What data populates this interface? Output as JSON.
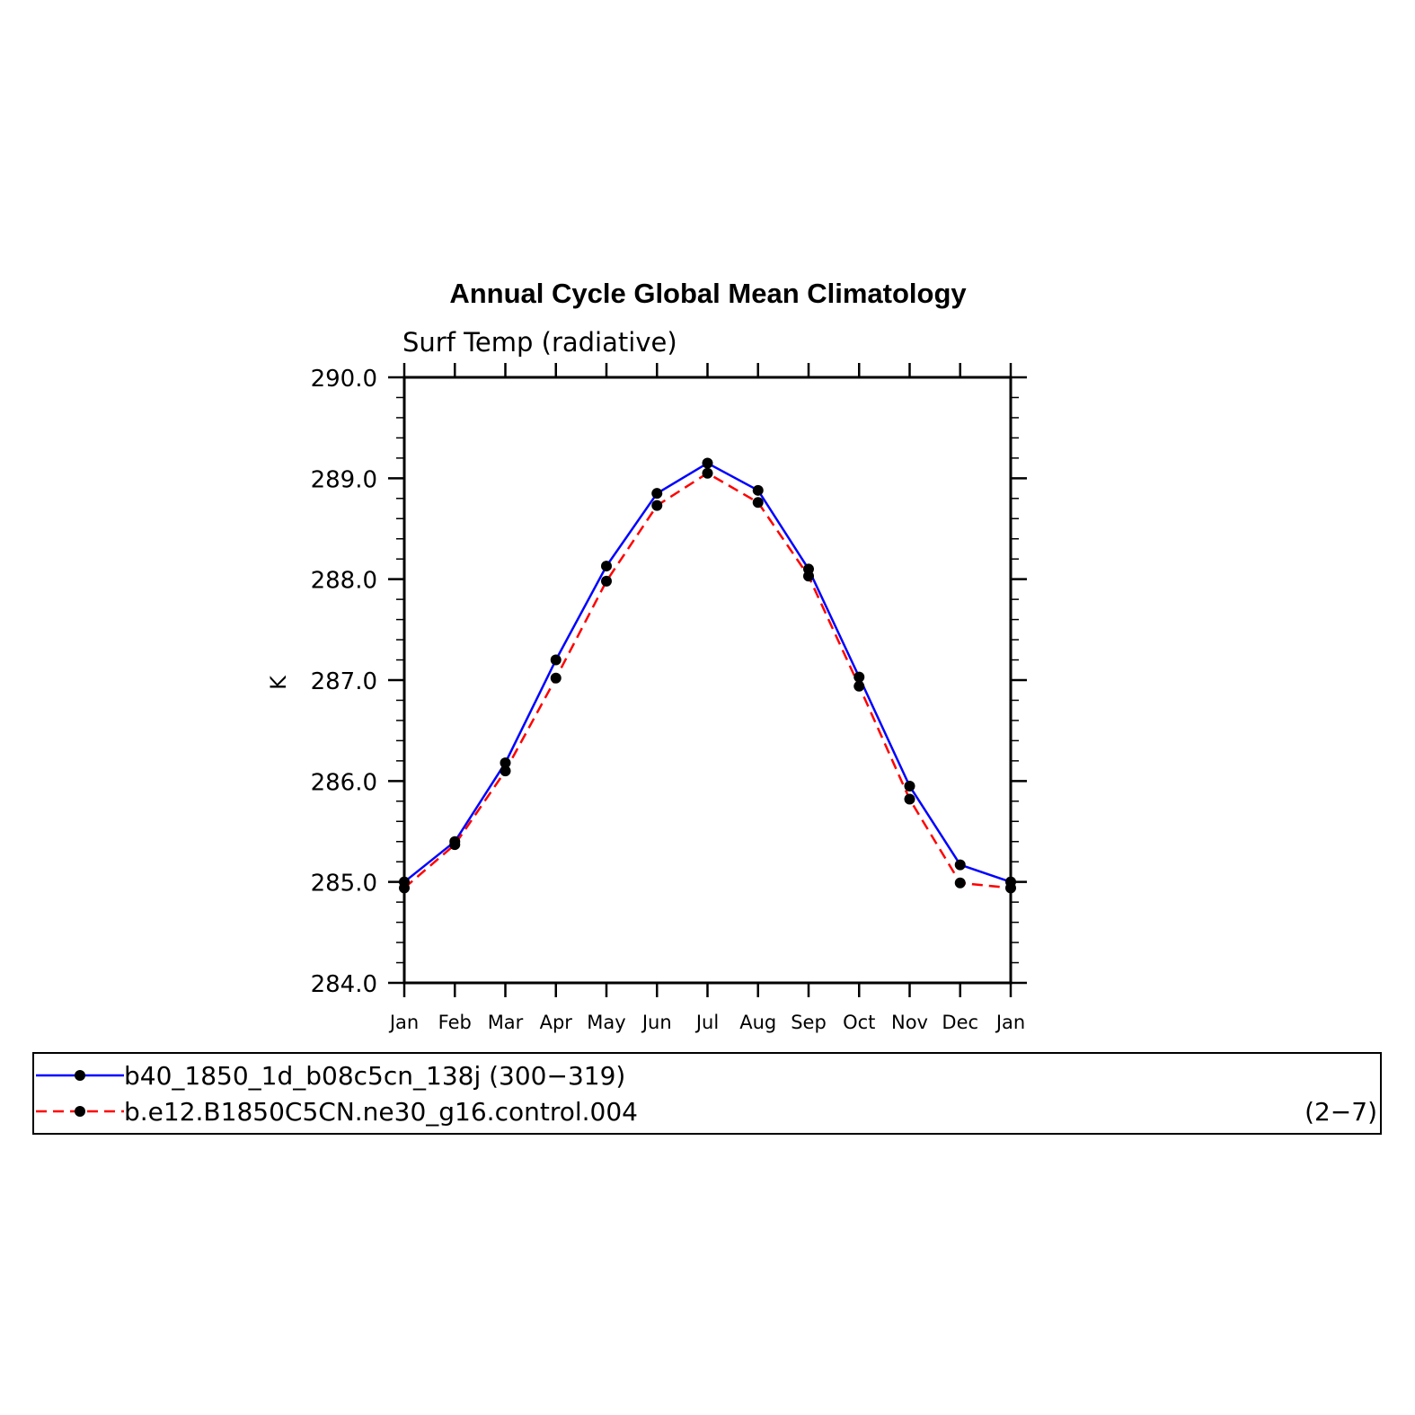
{
  "chart_data": {
    "type": "line",
    "title": "Annual Cycle Global Mean Climatology",
    "subtitle": "Surf Temp (radiative)",
    "xlabel": "",
    "ylabel": "K",
    "categories": [
      "Jan",
      "Feb",
      "Mar",
      "Apr",
      "May",
      "Jun",
      "Jul",
      "Aug",
      "Sep",
      "Oct",
      "Nov",
      "Dec",
      "Jan"
    ],
    "ylim": [
      284.0,
      290.0
    ],
    "yticks": [
      "284.0",
      "285.0",
      "286.0",
      "287.0",
      "288.0",
      "289.0",
      "290.0"
    ],
    "grid": false,
    "legend_position": "bottom",
    "series": [
      {
        "name": "b40_1850_1d_b08c5cn_138j (300−319)",
        "color": "#0000ff",
        "style": "solid",
        "values": [
          285.0,
          285.4,
          286.18,
          287.2,
          288.13,
          288.85,
          289.15,
          288.88,
          288.1,
          287.03,
          285.95,
          285.17,
          285.0
        ]
      },
      {
        "name": "b.e12.B1850C5CN.ne30_g16.control.004",
        "color": "#ff0000",
        "style": "dashed",
        "values": [
          284.94,
          285.37,
          286.1,
          287.02,
          287.98,
          288.73,
          289.05,
          288.76,
          288.03,
          286.94,
          285.82,
          284.99,
          284.94
        ]
      }
    ],
    "legend_note": "(2−7)"
  }
}
